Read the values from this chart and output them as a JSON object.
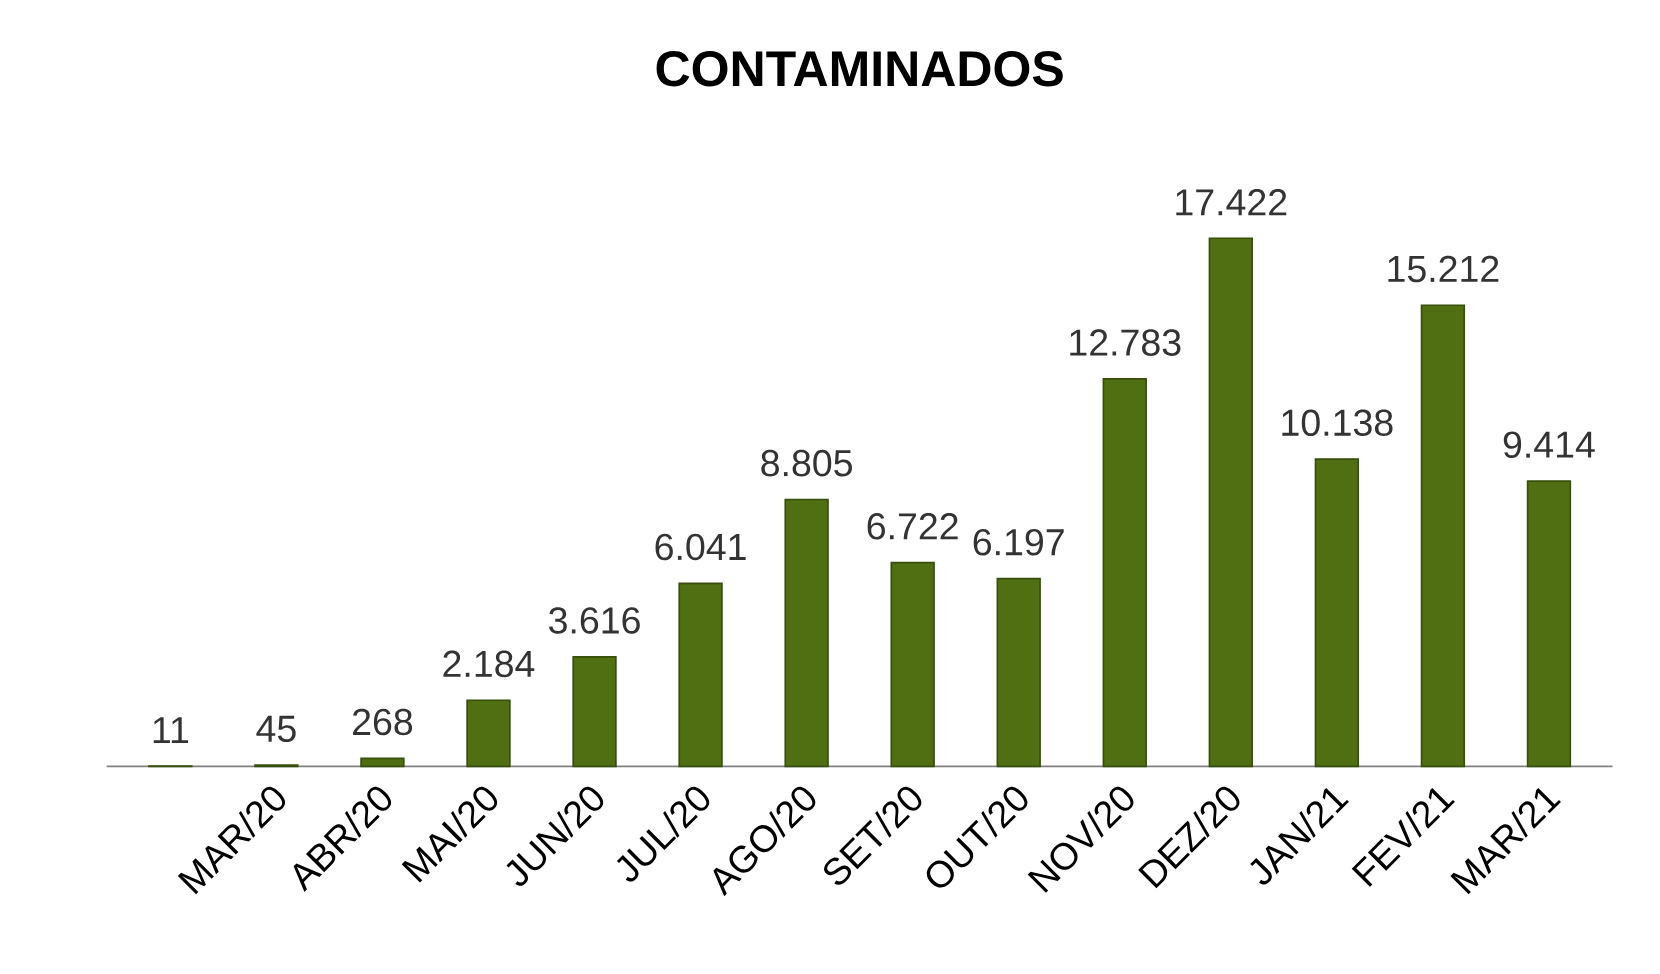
{
  "chart_data": {
    "type": "bar",
    "title": "CONTAMINADOS",
    "categories": [
      null,
      "MAR/20",
      "ABR/20",
      "MAI/20",
      "JUN/20",
      "JUL/20",
      "AGO/20",
      "SET/20",
      "OUT/20",
      "NOV/20",
      "DEZ/20",
      "JAN/21",
      "FEV/21",
      "MAR/21"
    ],
    "values": [
      11,
      45,
      268,
      2184,
      3616,
      6041,
      8805,
      6722,
      6197,
      12783,
      17422,
      10138,
      15212,
      9414
    ],
    "value_labels": [
      "11",
      "45",
      "268",
      "2.184",
      "3.616",
      "6.041",
      "8.805",
      "6.722",
      "6.197",
      "12.783",
      "17.422",
      "10.138",
      "15.212",
      "9.414"
    ],
    "color": "#4f6f12"
  }
}
